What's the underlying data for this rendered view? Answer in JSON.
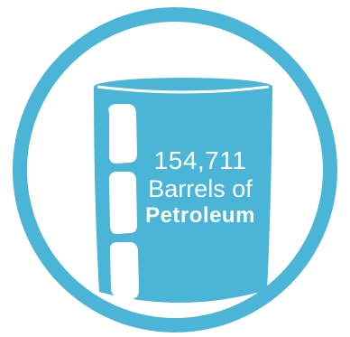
{
  "infographic": {
    "value": "154,711",
    "line2": "Barrels of",
    "line3": "Petroleum",
    "icon": "oil-barrel-icon",
    "colors": {
      "primary": "#4AB5D6",
      "background": "#FFFFFF",
      "text": "#FFFFFF"
    }
  }
}
